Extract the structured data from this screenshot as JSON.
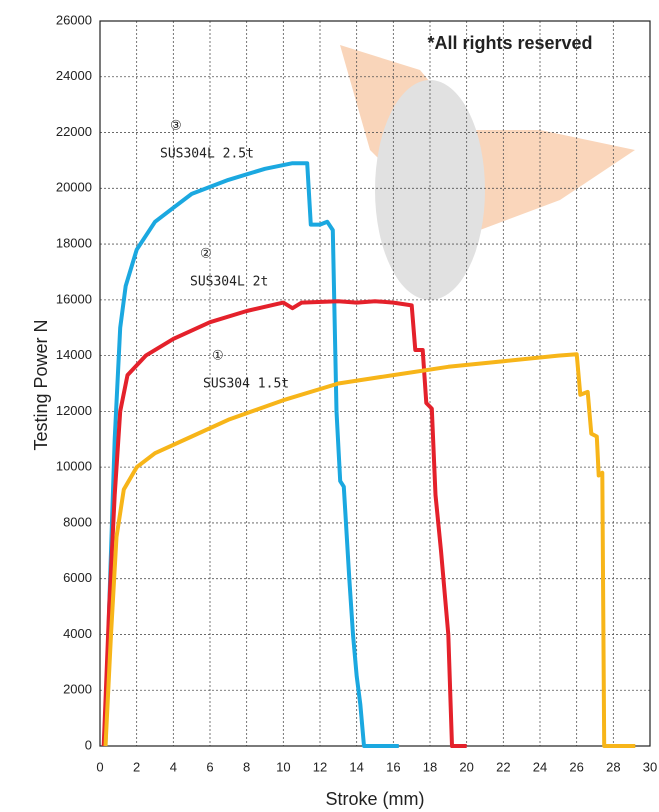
{
  "chart_data": {
    "type": "line",
    "x_label": "Stroke (mm)",
    "y_label": "Testing Power N",
    "xlim": [
      0,
      30
    ],
    "ylim": [
      0,
      26000
    ],
    "xticks": [
      0,
      2,
      4,
      6,
      8,
      10,
      12,
      14,
      16,
      18,
      20,
      22,
      24,
      26,
      28,
      30
    ],
    "yticks": [
      0,
      2000,
      4000,
      6000,
      8000,
      10000,
      12000,
      14000,
      16000,
      18000,
      20000,
      22000,
      24000,
      26000
    ],
    "grid": true,
    "annotations": [
      "*All rights reserved",
      "③",
      "SUS304L 2.5t",
      "②",
      "SUS304L 2t",
      "①",
      "SUS304 1.5t"
    ],
    "series": [
      {
        "name": "SUS304L 2.5t",
        "color": "#1ba8e0",
        "x": [
          0.3,
          0.5,
          0.8,
          1.1,
          1.4,
          2,
          3,
          4,
          5,
          7,
          9,
          10.5,
          11.3,
          11.5,
          12,
          12.4,
          12.7,
          12.9,
          13.1,
          13.3,
          13.6,
          13.8,
          14.0,
          14.2,
          14.4,
          16.3
        ],
        "values": [
          0,
          5000,
          11000,
          15000,
          16500,
          17800,
          18800,
          19300,
          19800,
          20300,
          20700,
          20900,
          20900,
          18700,
          18700,
          18800,
          18500,
          12000,
          9500,
          9300,
          6000,
          4000,
          2500,
          1500,
          0,
          0
        ]
      },
      {
        "name": "SUS304L 2t",
        "color": "#e4212b",
        "x": [
          0.2,
          0.5,
          0.8,
          1.1,
          1.5,
          2.5,
          4,
          6,
          8,
          10,
          10.5,
          11,
          13,
          14,
          15,
          16,
          17,
          17.2,
          17.6,
          17.8,
          18.1,
          18.3,
          18.6,
          19,
          19.2,
          20
        ],
        "values": [
          0,
          5000,
          9000,
          12000,
          13300,
          14000,
          14600,
          15200,
          15600,
          15900,
          15700,
          15900,
          15950,
          15900,
          15950,
          15900,
          15800,
          14200,
          14200,
          12300,
          12100,
          9000,
          7000,
          4000,
          0,
          0
        ]
      },
      {
        "name": "SUS304 1.5t",
        "color": "#f7b519",
        "x": [
          0.3,
          0.6,
          0.9,
          1.3,
          2,
          3,
          5,
          7,
          10,
          13,
          16,
          19,
          22,
          25,
          26,
          26.2,
          26.6,
          26.8,
          27.1,
          27.2,
          27.4,
          27.5,
          29.2
        ],
        "values": [
          0,
          4000,
          7500,
          9200,
          10000,
          10500,
          11100,
          11700,
          12400,
          13000,
          13300,
          13600,
          13800,
          14000,
          14050,
          12600,
          12700,
          11200,
          11100,
          9700,
          9800,
          0,
          0
        ]
      }
    ]
  }
}
